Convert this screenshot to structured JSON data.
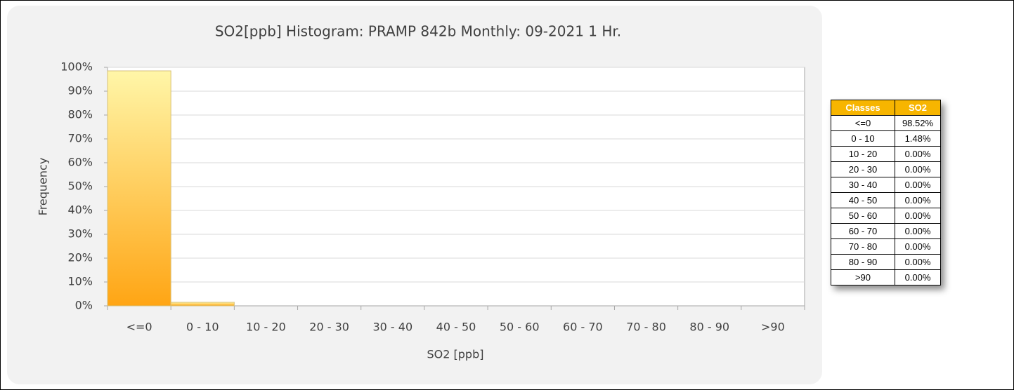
{
  "chart_data": {
    "type": "bar",
    "title": "SO2[ppb] Histogram: PRAMP 842b  Monthly: 09-2021 1 Hr.",
    "xlabel": "SO2 [ppb]",
    "ylabel": "Frequency",
    "categories": [
      "<=0",
      "0 - 10",
      "10 - 20",
      "20 - 30",
      "30 - 40",
      "40 - 50",
      "50 - 60",
      "60 - 70",
      "70 - 80",
      "80 - 90",
      ">90"
    ],
    "values": [
      98.52,
      1.48,
      0,
      0,
      0,
      0,
      0,
      0,
      0,
      0,
      0
    ],
    "value_labels": [
      "98.52%",
      "1.48%",
      "0.00%",
      "0.00%",
      "0.00%",
      "0.00%",
      "0.00%",
      "0.00%",
      "0.00%",
      "0.00%",
      "0.00%"
    ],
    "ylim": [
      0,
      100
    ],
    "yticks": [
      {
        "value": 0,
        "label": "0%"
      },
      {
        "value": 10,
        "label": "10%"
      },
      {
        "value": 20,
        "label": "20%"
      },
      {
        "value": 30,
        "label": "30%"
      },
      {
        "value": 40,
        "label": "40%"
      },
      {
        "value": 50,
        "label": "50%"
      },
      {
        "value": 60,
        "label": "60%"
      },
      {
        "value": 70,
        "label": "70%"
      },
      {
        "value": 80,
        "label": "80%"
      },
      {
        "value": 90,
        "label": "90%"
      },
      {
        "value": 100,
        "label": "100%"
      }
    ],
    "grid": true,
    "table_columns": [
      "Classes",
      "SO2"
    ]
  }
}
